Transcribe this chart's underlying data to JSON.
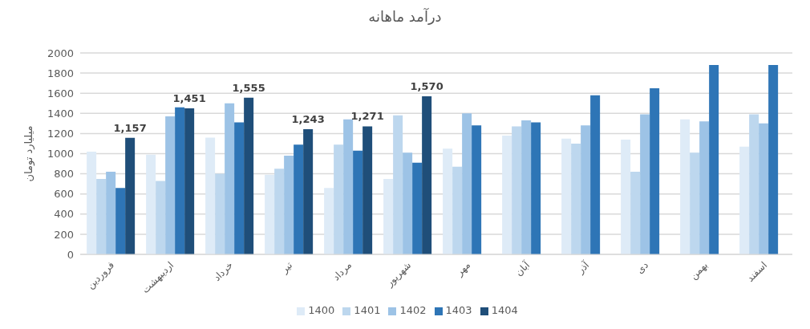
{
  "chart_data": {
    "type": "bar",
    "title": "درآمد ماهانه",
    "ylabel": "میلیارد تومان",
    "categories": [
      "فروردین",
      "اردیبهشت",
      "خرداد",
      "تیر",
      "مرداد",
      "شهریور",
      "مهر",
      "آبان",
      "آذر",
      "دی",
      "بهمن",
      "اسفند"
    ],
    "series": [
      {
        "name": "1400",
        "color": "#deebf7",
        "values": [
          1020,
          990,
          1160,
          790,
          660,
          750,
          1050,
          1180,
          1150,
          1140,
          1340,
          1070
        ]
      },
      {
        "name": "1401",
        "color": "#bdd7ee",
        "values": [
          750,
          730,
          800,
          850,
          1090,
          1380,
          870,
          1270,
          1100,
          820,
          1010,
          1390
        ]
      },
      {
        "name": "1402",
        "color": "#9dc3e6",
        "values": [
          820,
          1370,
          1500,
          980,
          1340,
          1010,
          1400,
          1330,
          1280,
          1390,
          1320,
          1300
        ]
      },
      {
        "name": "1403",
        "color": "#2e75b6",
        "values": [
          660,
          1460,
          1310,
          1090,
          1030,
          910,
          1280,
          1310,
          1580,
          1650,
          1880,
          1880
        ]
      },
      {
        "name": "1404",
        "color": "#1f4e79",
        "values": [
          1157,
          1451,
          1555,
          1243,
          1271,
          1570,
          null,
          null,
          null,
          null,
          null,
          null
        ],
        "value_labels": [
          "1,157",
          "1,451",
          "1,555",
          "1,243",
          "1,271",
          "1,570",
          null,
          null,
          null,
          null,
          null,
          null
        ]
      }
    ],
    "ylim": [
      0,
      2000
    ],
    "yticks": [
      0,
      200,
      400,
      600,
      800,
      1000,
      1200,
      1400,
      1600,
      1800,
      2000
    ],
    "grid": "y",
    "legend": "bottom"
  }
}
